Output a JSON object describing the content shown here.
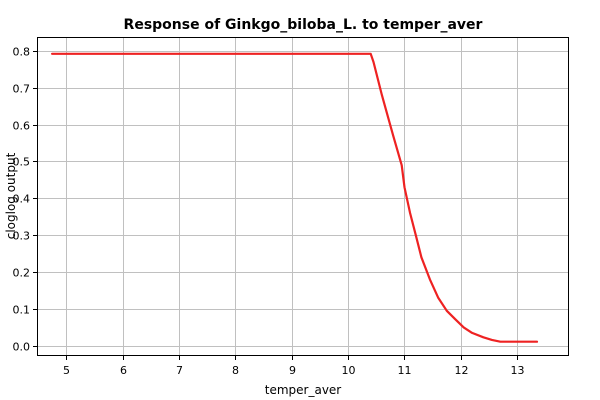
{
  "chart_data": {
    "type": "line",
    "title": "Response of Ginkgo_biloba_L. to temper_aver",
    "xlabel": "temper_aver",
    "ylabel": "cloglog output",
    "xlim": [
      4.5,
      13.9
    ],
    "ylim": [
      -0.025,
      0.835
    ],
    "xticks": [
      5,
      6,
      7,
      8,
      9,
      10,
      11,
      12,
      13
    ],
    "yticks": [
      0.0,
      0.1,
      0.2,
      0.3,
      0.4,
      0.5,
      0.6,
      0.7,
      0.8
    ],
    "xtick_labels": [
      "5",
      "6",
      "7",
      "8",
      "9",
      "10",
      "11",
      "12",
      "13"
    ],
    "ytick_labels": [
      "0.0",
      "0.1",
      "0.2",
      "0.3",
      "0.4",
      "0.5",
      "0.6",
      "0.7",
      "0.8"
    ],
    "grid": true,
    "series": [
      {
        "color": "#ee2222",
        "x": [
          4.75,
          10.4,
          10.45,
          10.6,
          10.8,
          10.95,
          11.0,
          11.1,
          11.2,
          11.3,
          11.45,
          11.6,
          11.75,
          11.9,
          12.05,
          12.2,
          12.4,
          12.55,
          12.7,
          13.0,
          13.35
        ],
        "y": [
          0.792,
          0.792,
          0.77,
          0.68,
          0.57,
          0.49,
          0.43,
          0.36,
          0.3,
          0.24,
          0.18,
          0.13,
          0.095,
          0.072,
          0.05,
          0.035,
          0.023,
          0.016,
          0.011,
          0.011,
          0.011
        ]
      }
    ]
  }
}
